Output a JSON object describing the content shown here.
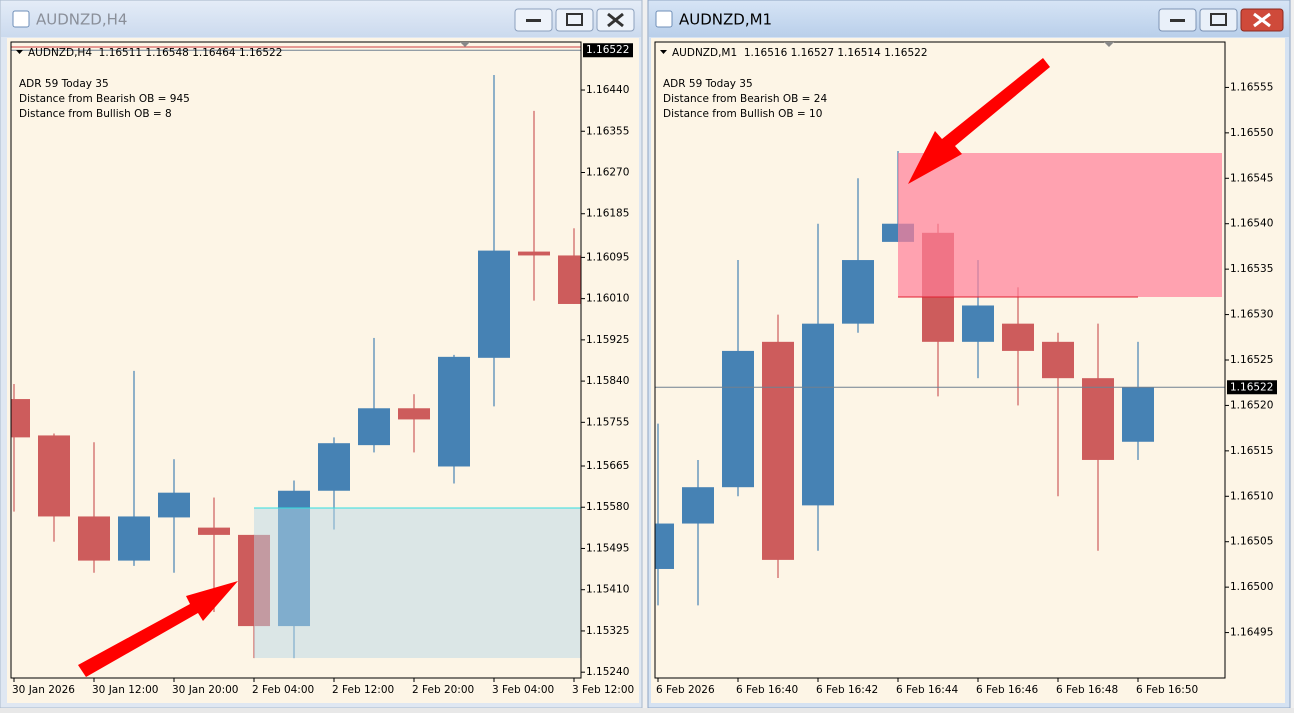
{
  "chart_data": [
    {
      "type": "candlestick",
      "window_title": "AUDNZD,H4",
      "header": "AUDNZD,H4  1.16511 1.16548 1.16464 1.16522",
      "info": [
        "ADR 59  Today 35",
        "Distance from Bearish OB = 945",
        "Distance from Bullish OB = 8"
      ],
      "categories": [
        "30 Jan 2026",
        null,
        "30 Jan 12:00",
        null,
        "30 Jan 20:00",
        null,
        "2 Feb 04:00",
        null,
        "2 Feb 12:00",
        null,
        "2 Feb 20:00",
        null,
        "3 Feb 04:00",
        null,
        "3 Feb 12:00"
      ],
      "open": [
        1.15803,
        1.15728,
        1.15561,
        1.1547,
        1.15559,
        1.15538,
        1.15523,
        1.15335,
        1.15614,
        1.15708,
        1.15784,
        1.15664,
        1.15888,
        1.16107,
        1.16099
      ],
      "high": [
        1.15834,
        1.15732,
        1.15714,
        1.15861,
        1.15679,
        1.156,
        1.15523,
        1.15635,
        1.15724,
        1.15929,
        1.15813,
        1.15894,
        1.16471,
        1.16397,
        1.16155
      ],
      "low": [
        1.15571,
        1.15509,
        1.15445,
        1.15459,
        1.15445,
        1.15364,
        1.15269,
        1.15269,
        1.15534,
        1.15693,
        1.15693,
        1.15629,
        1.15788,
        1.16006,
        1.15999
      ],
      "close": [
        1.15724,
        1.15561,
        1.1547,
        1.15561,
        1.1561,
        1.15523,
        1.15335,
        1.15614,
        1.15712,
        1.15784,
        1.15761,
        1.1589,
        1.16109,
        1.16099,
        1.15999
      ],
      "up_color": "#4682b4",
      "down_color": "#cd5c5c",
      "background": "#fdf5e6",
      "current_price": {
        "value": 1.16522,
        "label": "1.16522"
      },
      "ylim": [
        1.15228,
        1.16539
      ],
      "yticks": [
        {
          "value": 1.1644,
          "label": "1.16440"
        },
        {
          "value": 1.16355,
          "label": "1.16355"
        },
        {
          "value": 1.1627,
          "label": "1.16270"
        },
        {
          "value": 1.16185,
          "label": "1.16185"
        },
        {
          "value": 1.16095,
          "label": "1.16095"
        },
        {
          "value": 1.1601,
          "label": "1.16010"
        },
        {
          "value": 1.15925,
          "label": "1.15925"
        },
        {
          "value": 1.1584,
          "label": "1.15840"
        },
        {
          "value": 1.15755,
          "label": "1.15755"
        },
        {
          "value": 1.15665,
          "label": "1.15665"
        },
        {
          "value": 1.1558,
          "label": "1.15580"
        },
        {
          "value": 1.15495,
          "label": "1.15495"
        },
        {
          "value": 1.1541,
          "label": "1.15410"
        },
        {
          "value": 1.15325,
          "label": "1.15325"
        },
        {
          "value": 1.1524,
          "label": "1.15240"
        }
      ]
    },
    {
      "type": "candlestick",
      "window_title": "AUDNZD,M1",
      "header": "AUDNZD,M1  1.16516 1.16527 1.16514 1.16522",
      "info": [
        "ADR 59  Today 35",
        "Distance from Bearish OB = 24",
        "Distance from Bullish OB = 10"
      ],
      "categories": [
        "6 Feb 2026",
        null,
        "6 Feb 16:40",
        null,
        "6 Feb 16:42",
        null,
        "6 Feb 16:44",
        null,
        "6 Feb 16:46",
        null,
        "6 Feb 16:48",
        null,
        "6 Feb 16:50"
      ],
      "open": [
        1.16502,
        1.16507,
        1.16511,
        1.16527,
        1.16509,
        1.16529,
        1.16538,
        1.16539,
        1.16527,
        1.16529,
        1.16527,
        1.16523,
        1.16516
      ],
      "high": [
        1.16518,
        1.16514,
        1.16536,
        1.1653,
        1.1654,
        1.16545,
        1.16548,
        1.1654,
        1.16536,
        1.16533,
        1.16528,
        1.16529,
        1.16527
      ],
      "low": [
        1.16498,
        1.16498,
        1.1651,
        1.16501,
        1.16504,
        1.16528,
        1.16538,
        1.16521,
        1.16523,
        1.1652,
        1.1651,
        1.16504,
        1.16514
      ],
      "close": [
        1.16507,
        1.16511,
        1.16526,
        1.16503,
        1.16529,
        1.16536,
        1.1654,
        1.16527,
        1.16531,
        1.16526,
        1.16523,
        1.16514,
        1.16522
      ],
      "up_color": "#4682b4",
      "down_color": "#cd5c5c",
      "background": "#fdf5e6",
      "current_price": {
        "value": 1.16522,
        "label": "1.16522"
      },
      "ylim": [
        1.1649,
        1.1656
      ],
      "yticks": [
        {
          "value": 1.16555,
          "label": "1.16555"
        },
        {
          "value": 1.1655,
          "label": "1.16550"
        },
        {
          "value": 1.16545,
          "label": "1.16545"
        },
        {
          "value": 1.1654,
          "label": "1.16540"
        },
        {
          "value": 1.16535,
          "label": "1.16535"
        },
        {
          "value": 1.1653,
          "label": "1.16530"
        },
        {
          "value": 1.16525,
          "label": "1.16525"
        },
        {
          "value": 1.1652,
          "label": "1.16520"
        },
        {
          "value": 1.16515,
          "label": "1.16515"
        },
        {
          "value": 1.1651,
          "label": "1.16510"
        },
        {
          "value": 1.16505,
          "label": "1.16505"
        },
        {
          "value": 1.165,
          "label": "1.16500"
        },
        {
          "value": 1.16495,
          "label": "1.16495"
        }
      ]
    }
  ]
}
